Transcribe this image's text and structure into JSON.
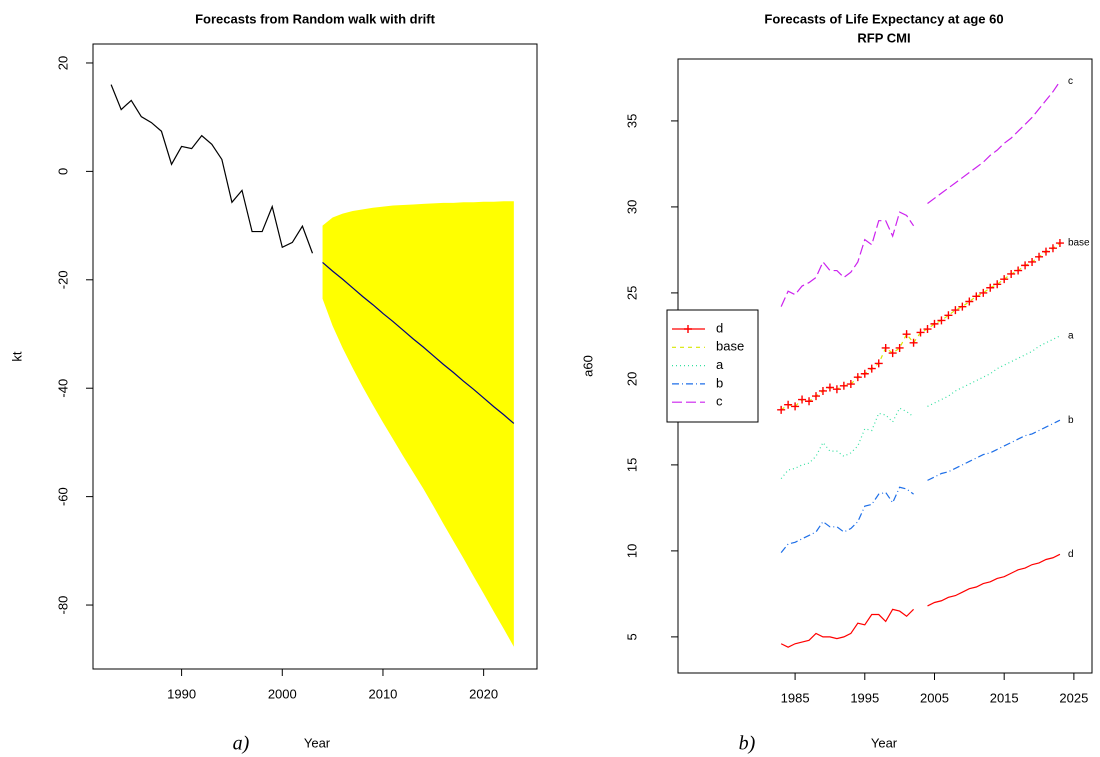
{
  "chart_data": [
    {
      "type": "line",
      "title": "Forecasts from Random walk with drift",
      "xlabel": "Year",
      "ylabel": "kt",
      "panel_label": "a)",
      "xlim": [
        1981.2,
        2025.3
      ],
      "xticks": [
        1990,
        2000,
        2010,
        2020
      ],
      "ylim": [
        -91.8,
        23.5
      ],
      "yticks": [
        -80,
        -60,
        -40,
        -20,
        0,
        20
      ],
      "band": {
        "color": "#ffff00",
        "x": [
          2004,
          2005,
          2006,
          2007,
          2008,
          2009,
          2010,
          2011,
          2012,
          2013,
          2014,
          2015,
          2016,
          2017,
          2018,
          2019,
          2020,
          2021,
          2022,
          2023
        ],
        "lower": [
          -23.5,
          -28.5,
          -32.6,
          -36.3,
          -39.8,
          -43.1,
          -46.3,
          -49.4,
          -52.5,
          -55.5,
          -58.5,
          -61.7,
          -65.0,
          -68.2,
          -71.4,
          -74.7,
          -77.9,
          -81.2,
          -84.4,
          -87.7
        ],
        "upper": [
          -10.0,
          -8.5,
          -7.8,
          -7.3,
          -7.0,
          -6.7,
          -6.5,
          -6.3,
          -6.2,
          -6.1,
          -6.0,
          -5.9,
          -5.8,
          -5.8,
          -5.7,
          -5.7,
          -5.6,
          -5.6,
          -5.5,
          -5.5
        ]
      },
      "series": [
        {
          "color": "#000000",
          "x": [
            1983,
            1984,
            1985,
            1986,
            1987,
            1988,
            1989,
            1990,
            1991,
            1992,
            1993,
            1994,
            1995,
            1996,
            1997,
            1998,
            1999,
            2000,
            2001,
            2002,
            2003
          ],
          "values": [
            16.0,
            11.4,
            13.1,
            10.1,
            9.0,
            7.4,
            1.3,
            4.6,
            4.2,
            6.6,
            5.0,
            2.2,
            -5.7,
            -3.5,
            -11.1,
            -11.1,
            -6.5,
            -14.0,
            -13.1,
            -10.1,
            -15.1
          ]
        },
        {
          "color": "#000080",
          "x": [
            2004,
            2005,
            2006,
            2007,
            2008,
            2009,
            2010,
            2011,
            2012,
            2013,
            2014,
            2015,
            2016,
            2017,
            2018,
            2019,
            2020,
            2021,
            2022,
            2023
          ],
          "values": [
            -16.8,
            -18.4,
            -19.9,
            -21.5,
            -23.1,
            -24.6,
            -26.2,
            -27.7,
            -29.3,
            -30.9,
            -32.4,
            -34.0,
            -35.6,
            -37.1,
            -38.7,
            -40.2,
            -41.8,
            -43.4,
            -44.9,
            -46.5
          ]
        }
      ]
    },
    {
      "type": "line",
      "title": "Forecasts of Life Expectancy at age 60",
      "subtitle": "RFP CMI",
      "xlabel": "Year",
      "ylabel": "a60",
      "panel_label": "b)",
      "xlim": [
        1968.2,
        2027.6
      ],
      "xticks": [
        1985,
        1995,
        2005,
        2015,
        2025
      ],
      "ylim": [
        2.9,
        38.6
      ],
      "yticks": [
        5,
        10,
        15,
        20,
        25,
        30,
        35
      ],
      "legend": "left",
      "end_labels": true,
      "x": [
        1983,
        1984,
        1985,
        1986,
        1987,
        1988,
        1989,
        1990,
        1991,
        1992,
        1993,
        1994,
        1995,
        1996,
        1997,
        1998,
        1999,
        2000,
        2001,
        2002,
        2003,
        2004,
        2005,
        2006,
        2007,
        2008,
        2009,
        2010,
        2011,
        2012,
        2013,
        2014,
        2015,
        2016,
        2017,
        2018,
        2019,
        2020,
        2021,
        2022,
        2023
      ],
      "series": [
        {
          "name": "d",
          "color": "#ff0000",
          "dash": "none",
          "legend_symbol": "+",
          "values": [
            4.6,
            4.4,
            4.6,
            4.7,
            4.8,
            5.2,
            5.0,
            5.0,
            4.9,
            5.0,
            5.2,
            5.8,
            5.7,
            6.3,
            6.3,
            5.9,
            6.6,
            6.5,
            6.2,
            6.6,
            null,
            6.8,
            7.0,
            7.1,
            7.3,
            7.4,
            7.6,
            7.8,
            7.9,
            8.1,
            8.2,
            8.4,
            8.5,
            8.7,
            8.9,
            9.0,
            9.2,
            9.3,
            9.5,
            9.6,
            9.8
          ]
        },
        {
          "name": "base",
          "color": "#d8e800",
          "dash": "4,4",
          "points_color": "#ff0000",
          "values": [
            18.2,
            18.5,
            18.4,
            18.8,
            18.7,
            19.0,
            19.3,
            19.5,
            19.4,
            19.6,
            19.7,
            20.1,
            20.3,
            20.6,
            20.9,
            21.8,
            21.5,
            21.8,
            22.6,
            22.1,
            22.7,
            22.9,
            23.2,
            23.4,
            23.7,
            24.0,
            24.2,
            24.5,
            24.8,
            25.0,
            25.3,
            25.5,
            25.8,
            26.1,
            26.3,
            26.6,
            26.8,
            27.1,
            27.4,
            27.6,
            27.9
          ]
        },
        {
          "name": "a",
          "color": "#33e0a0",
          "dash": "1,3",
          "values": [
            14.2,
            14.7,
            14.8,
            15.0,
            15.1,
            15.5,
            16.3,
            15.8,
            15.8,
            15.5,
            15.7,
            16.1,
            17.1,
            17.0,
            18.0,
            17.9,
            17.5,
            18.3,
            18.1,
            17.8,
            null,
            18.4,
            18.6,
            18.8,
            19.0,
            19.3,
            19.5,
            19.7,
            19.9,
            20.1,
            20.3,
            20.6,
            20.8,
            21.0,
            21.2,
            21.4,
            21.6,
            21.9,
            22.1,
            22.3,
            22.5
          ]
        },
        {
          "name": "b",
          "color": "#1e6fe8",
          "dash": "7,3,1,3",
          "values": [
            9.9,
            10.4,
            10.5,
            10.7,
            10.9,
            11.1,
            11.7,
            11.4,
            11.4,
            11.1,
            11.3,
            11.7,
            12.6,
            12.7,
            13.3,
            13.4,
            12.8,
            13.7,
            13.6,
            13.3,
            null,
            14.1,
            14.3,
            14.5,
            14.6,
            14.8,
            15.0,
            15.2,
            15.4,
            15.6,
            15.7,
            15.9,
            16.1,
            16.3,
            16.5,
            16.7,
            16.8,
            17.0,
            17.2,
            17.4,
            17.6
          ]
        },
        {
          "name": "c",
          "color": "#cc22ee",
          "dash": "10,4",
          "values": [
            24.2,
            25.1,
            24.9,
            25.4,
            25.6,
            25.9,
            26.8,
            26.3,
            26.3,
            25.9,
            26.2,
            26.8,
            28.1,
            27.8,
            29.2,
            29.2,
            28.3,
            29.7,
            29.5,
            28.9,
            null,
            30.2,
            30.5,
            30.8,
            31.1,
            31.4,
            31.7,
            32.0,
            32.3,
            32.6,
            33.0,
            33.3,
            33.7,
            34.0,
            34.4,
            34.8,
            35.2,
            35.7,
            36.2,
            36.7,
            37.3
          ]
        }
      ]
    }
  ]
}
